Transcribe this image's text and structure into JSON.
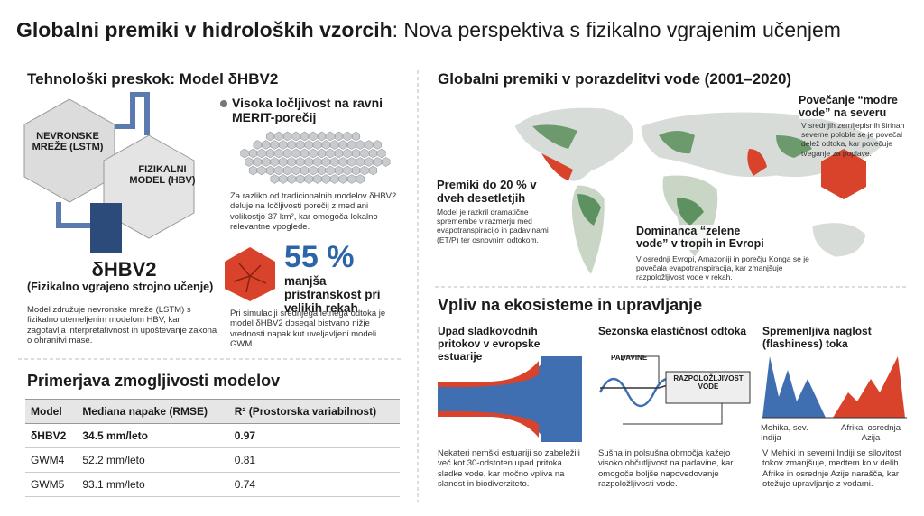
{
  "header": {
    "title_bold": "Globalni premiki v hidroloških vzorcih",
    "title_rest": ": Nova perspektiva s fizikalno vgrajenim učenjem"
  },
  "model": {
    "heading": "Tehnološki preskok: Model δHBV2",
    "diagram": {
      "lstm": "NEVRONSKE MREŽE (LSTM)",
      "hbv": "FIZIKALNI MODEL (HBV)"
    },
    "name": "δHBV2",
    "subtitle": "(Fizikalno vgrajeno strojno učenje)",
    "description": "Model združuje nevronske mreže (LSTM) s fizikalno utemeljenim modelom HBV, kar zagotavlja interpretativnost in upoštevanje zakona o ohranitvi mase.",
    "resolution": {
      "heading": "Visoka ločljivost na ravni MERIT-porečij",
      "text": "Za razliko od tradicionalnih modelov δHBV2 deluje na ločljivosti porečij z mediani volikostjo 37 km², kar omogoča lokalno relevantne vpoglede."
    },
    "bias": {
      "stat": "55 %",
      "label": "manjša pristranskost pri velikih rekah",
      "text": "Pri simulaciji srednjega letnega odtoka je model δHBV2 dosegal bistvano nižje vrednosti napak kut uveljavljeni modeli GWM."
    }
  },
  "table": {
    "heading": "Primerjava zmogljivosti modelov",
    "columns": [
      "Model",
      "Mediana napake (RMSE)",
      "R² (Prostorska variabilnost)"
    ],
    "rows": [
      [
        "δHBV2",
        "34.5 mm/leto",
        "0.97"
      ],
      [
        "GWM4",
        "52.2 mm/leto",
        "0.81"
      ],
      [
        "GWM5",
        "93.1 mm/leto",
        "0.74"
      ]
    ]
  },
  "map": {
    "heading": "Globalni premiki v porazdelitvi vode (2001–2020)",
    "annotations": [
      {
        "title": "Povečanje “modre vode” na severu",
        "text": "V srednjih zemljepisnih širinah severne poloble se je povečal delež odtoka, kar povečuje tveganje za poplave."
      },
      {
        "title": "Premiki do 20 % v dveh desetletjih",
        "text": "Model je razkril dramatične spremembe v razmerju med evapotranspiracijo in padavinami (ET/P) ter osnovnim odtokom."
      },
      {
        "title": "Dominanca “zelene vode” v tropih in Evropi",
        "text": "V osrednji Evropi, Amazoniji in porečju Konga se je povečala evapotranspiracija, kar zmanjšuje razpoložljivost vode v rekah."
      }
    ]
  },
  "impact": {
    "heading": "Vpliv na ekosisteme in upravljanje",
    "items": [
      {
        "title": "Upad sladkovodnih pritokov v evropske estuarije",
        "text": "Nekateri nemški estuariji so zabeležili več kot 30-odstoten upad pritoka sladke vode, kar močno vpliva na slanost in biodiverziteto."
      },
      {
        "title": "Sezonska elastičnost odtoka",
        "labels": [
          "PADAVINE",
          "RAZPOLOŽLJIVOST VODE"
        ],
        "text": "Sušna in polsušna območja kažejo visoko občutljivost na padavine, kar omogoča boljše napovedovanje razpoložljivosti vode."
      },
      {
        "title": "Spremenljiva naglost (flashiness) toka",
        "labels": [
          "Mehika, sev. Indija",
          "Afrika, osrednja Azija"
        ],
        "text": "V Mehiki in severni Indiji se silovitost tokov zmanjšuje, medtem ko v delih Afrike in osrednje Azije narašča, kar otežuje upravljanje z vodami."
      }
    ]
  }
}
